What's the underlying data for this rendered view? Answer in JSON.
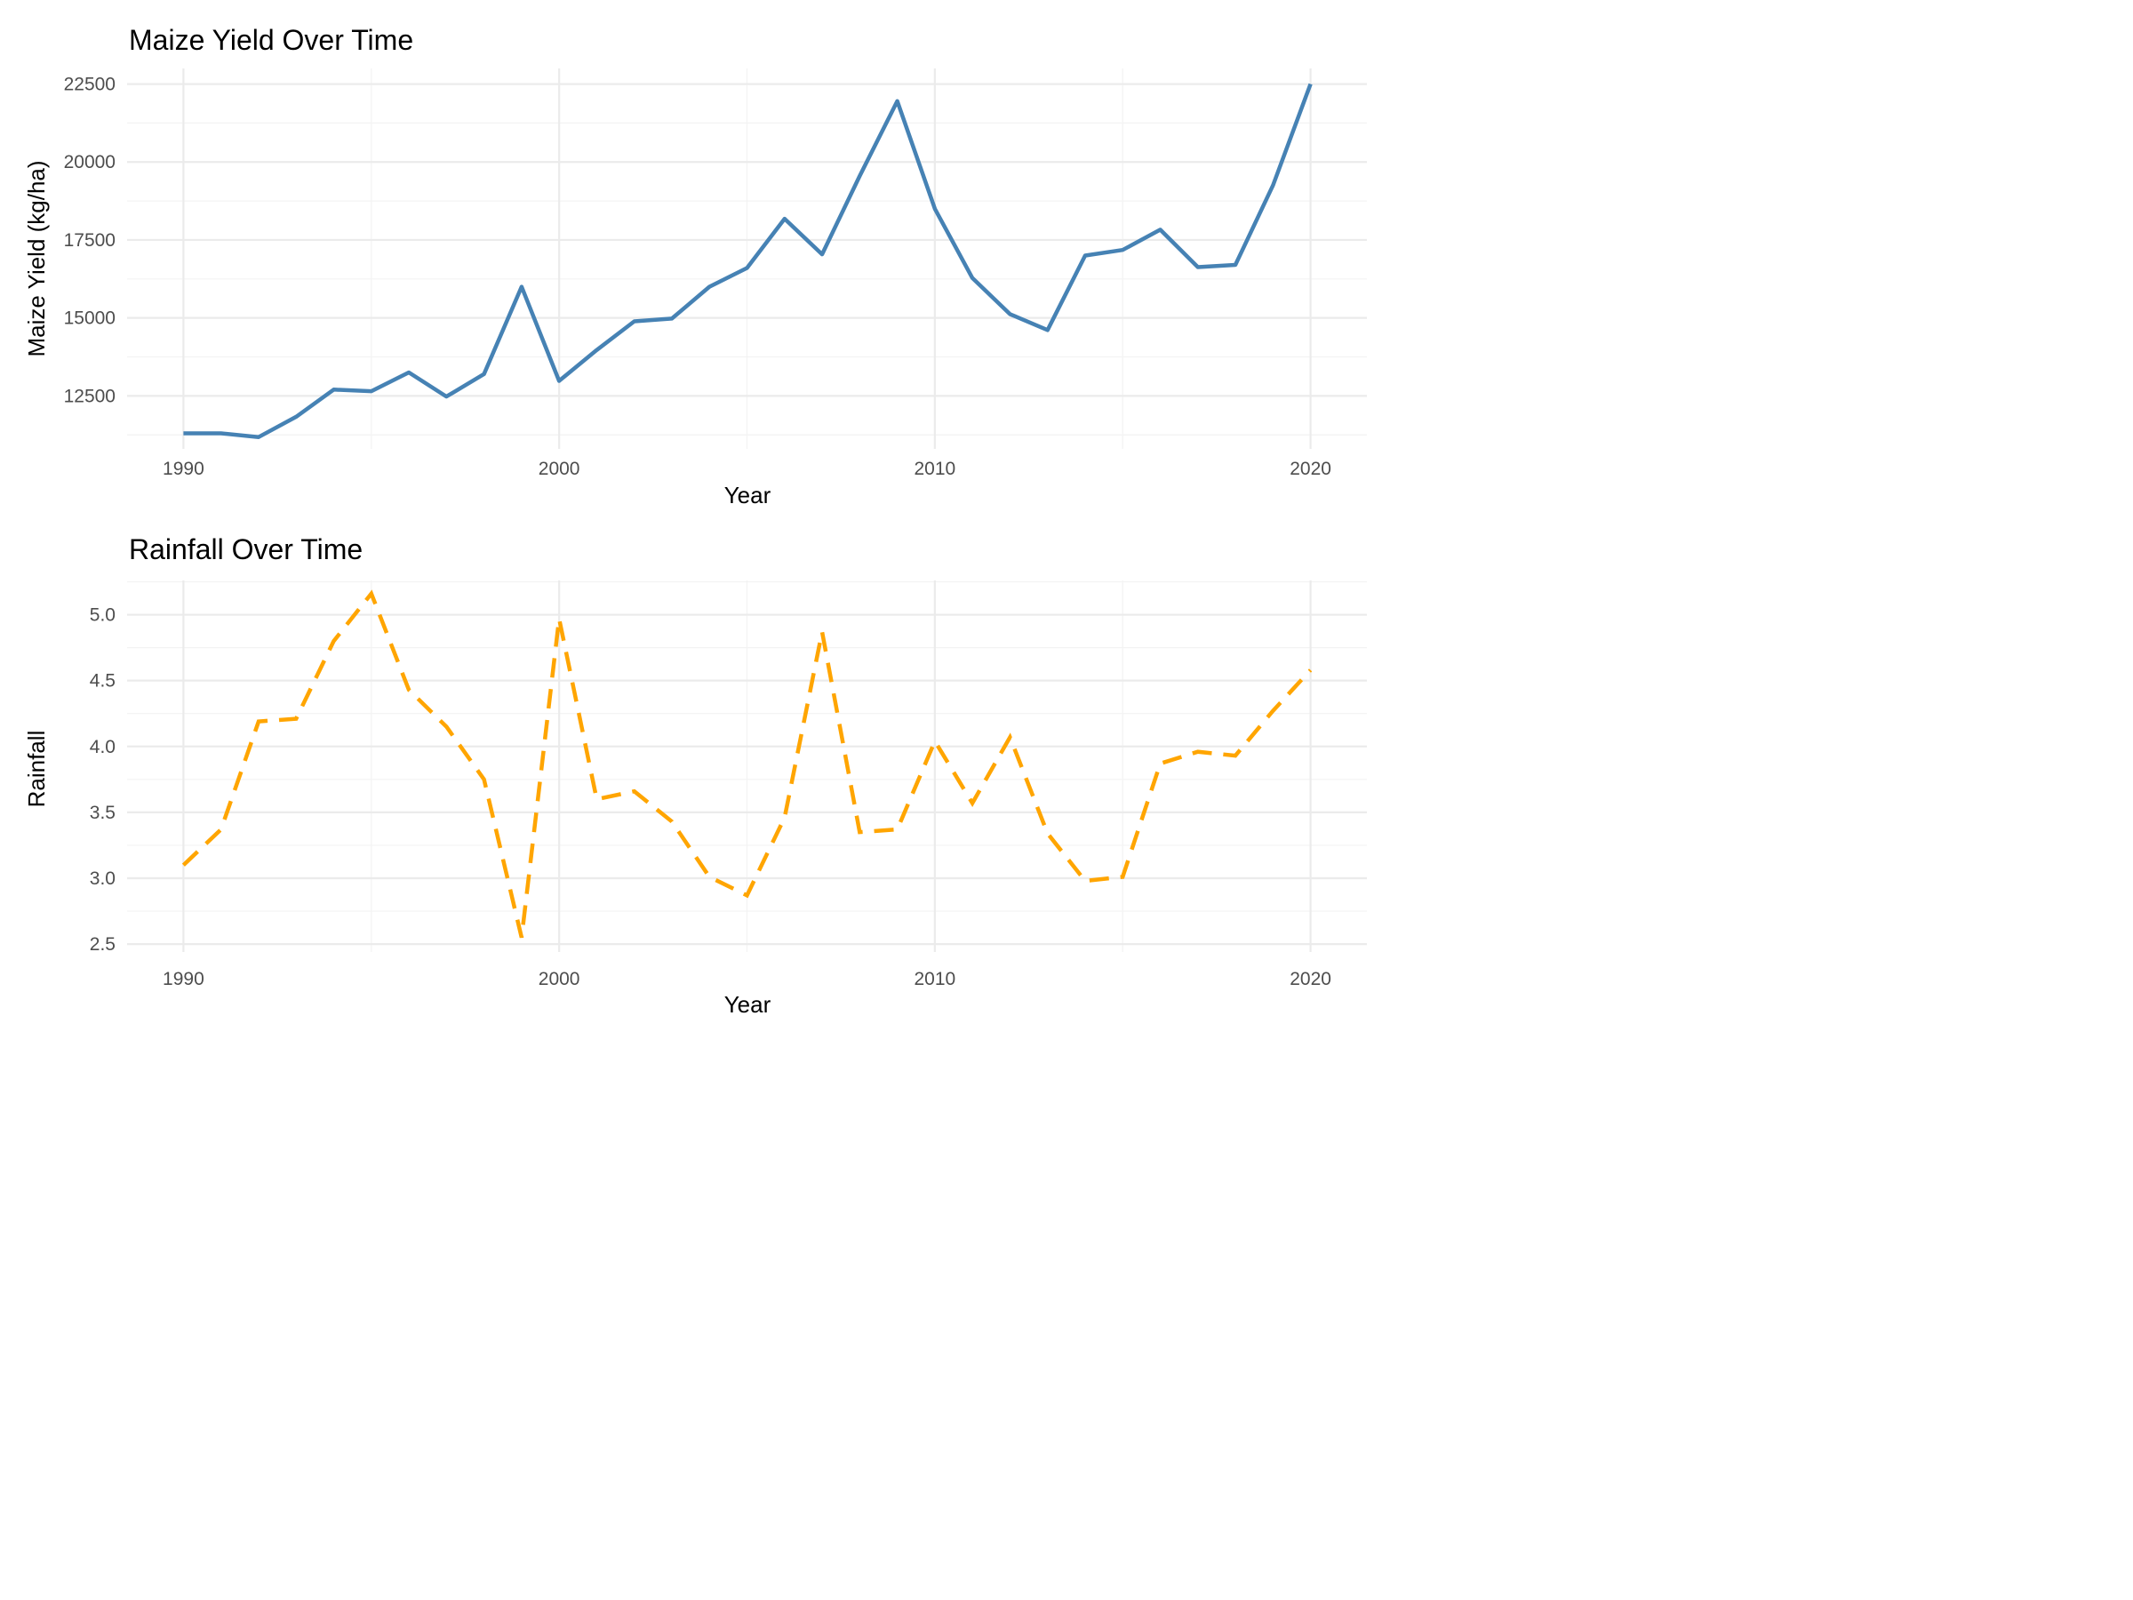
{
  "chart_data": [
    {
      "type": "line",
      "title": "Maize Yield Over Time",
      "xlabel": "Year",
      "ylabel": "Maize Yield (kg/ha)",
      "xlim": [
        1988.5,
        2021.5
      ],
      "ylim": [
        10800,
        23000
      ],
      "x_ticks": [
        1990,
        2000,
        2010,
        2020
      ],
      "y_ticks": [
        12500,
        15000,
        17500,
        20000,
        22500
      ],
      "grid": true,
      "series": [
        {
          "color": "#4682B4",
          "line_style": "solid",
          "x": [
            1990,
            1991,
            1992,
            1993,
            1994,
            1995,
            1996,
            1997,
            1998,
            1999,
            2000,
            2001,
            2002,
            2003,
            2004,
            2005,
            2006,
            2007,
            2008,
            2009,
            2010,
            2011,
            2012,
            2013,
            2014,
            2015,
            2016,
            2017,
            2018,
            2019,
            2020
          ],
          "values": [
            11300,
            11300,
            11180,
            11830,
            12700,
            12650,
            13250,
            12480,
            13200,
            16000,
            12980,
            13970,
            14890,
            14980,
            16000,
            16600,
            18180,
            17040,
            19550,
            21950,
            18500,
            16280,
            15120,
            14610,
            17000,
            17180,
            17830,
            16630,
            16700,
            19250,
            22500
          ]
        }
      ]
    },
    {
      "type": "line",
      "title": "Rainfall Over Time",
      "xlabel": "Year",
      "ylabel": "Rainfall",
      "xlim": [
        1988.5,
        2021.5
      ],
      "ylim": [
        2.44,
        5.26
      ],
      "x_ticks": [
        1990,
        2000,
        2010,
        2020
      ],
      "y_ticks": [
        2.5,
        3.0,
        3.5,
        4.0,
        4.5,
        5.0
      ],
      "y_tick_labels": [
        "2.5",
        "3.0",
        "3.5",
        "4.0",
        "4.5",
        "5.0"
      ],
      "grid": true,
      "series": [
        {
          "color": "#FFA500",
          "line_style": "dashed",
          "x": [
            1990,
            1991,
            1992,
            1993,
            1994,
            1995,
            1996,
            1997,
            1998,
            1999,
            2000,
            2001,
            2002,
            2003,
            2004,
            2005,
            2006,
            2007,
            2008,
            2009,
            2010,
            2011,
            2012,
            2013,
            2014,
            2015,
            2016,
            2017,
            2018,
            2019,
            2020
          ],
          "values": [
            3.1,
            3.37,
            4.19,
            4.21,
            4.8,
            5.16,
            4.43,
            4.15,
            3.75,
            2.55,
            4.97,
            3.6,
            3.66,
            3.43,
            3.01,
            2.87,
            3.46,
            4.87,
            3.35,
            3.37,
            4.04,
            3.57,
            4.07,
            3.34,
            2.98,
            3.01,
            3.87,
            3.96,
            3.93,
            4.27,
            4.58
          ]
        }
      ]
    }
  ]
}
